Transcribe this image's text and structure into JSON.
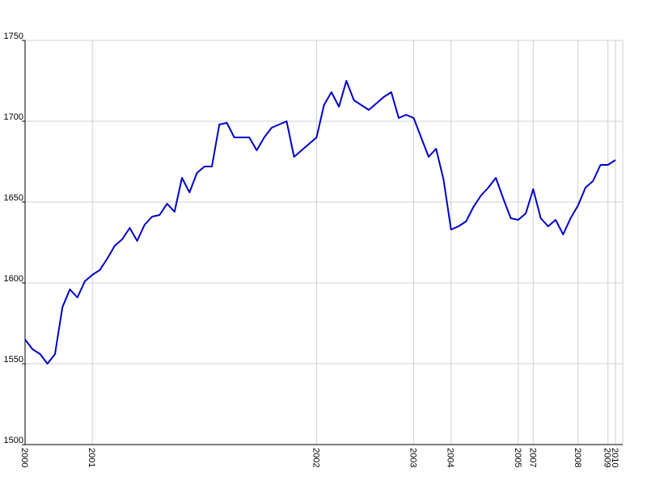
{
  "chart_data": {
    "type": "line",
    "categories": [
      "2000",
      null,
      null,
      null,
      null,
      null,
      null,
      null,
      null,
      "2001",
      null,
      null,
      null,
      null,
      null,
      null,
      null,
      null,
      null,
      null,
      null,
      null,
      null,
      null,
      null,
      null,
      null,
      null,
      null,
      null,
      null,
      null,
      null,
      null,
      null,
      null,
      null,
      null,
      null,
      "2002",
      null,
      null,
      null,
      null,
      null,
      null,
      null,
      null,
      null,
      null,
      null,
      null,
      "2003",
      null,
      null,
      null,
      null,
      "2004",
      null,
      null,
      null,
      null,
      null,
      null,
      null,
      null,
      "2005",
      null,
      "2007",
      null,
      null,
      null,
      null,
      null,
      "2008",
      null,
      null,
      null,
      "2009",
      "2010"
    ],
    "series": [
      {
        "color": "#0000cc",
        "values": [
          1565,
          1559,
          1556,
          1550,
          1556,
          1585,
          1596,
          1591,
          1601,
          1605,
          1608,
          1615,
          1623,
          1627,
          1634,
          1626,
          1636,
          1641,
          1642,
          1649,
          1644,
          1665,
          1656,
          1668,
          1672,
          1672,
          1698,
          1699,
          1690,
          1690,
          1690,
          1682,
          1690,
          1696,
          1698,
          1700,
          1678,
          1682,
          1686,
          1690,
          1710,
          1718,
          1709,
          1725,
          1713,
          1710,
          1707,
          1711,
          1715,
          1718,
          1702,
          1704,
          1702,
          1690,
          1678,
          1683,
          1664,
          1633,
          1635,
          1638,
          1647,
          1654,
          1659,
          1665,
          1652,
          1640,
          1639,
          1643,
          1658,
          1640,
          1635,
          1639,
          1630,
          1640,
          1648,
          1659,
          1663,
          1673,
          1673,
          1676
        ]
      }
    ],
    "ylim": [
      1500,
      1750
    ],
    "yticks": [
      1500,
      1550,
      1600,
      1650,
      1700,
      1750
    ],
    "grid": true
  }
}
